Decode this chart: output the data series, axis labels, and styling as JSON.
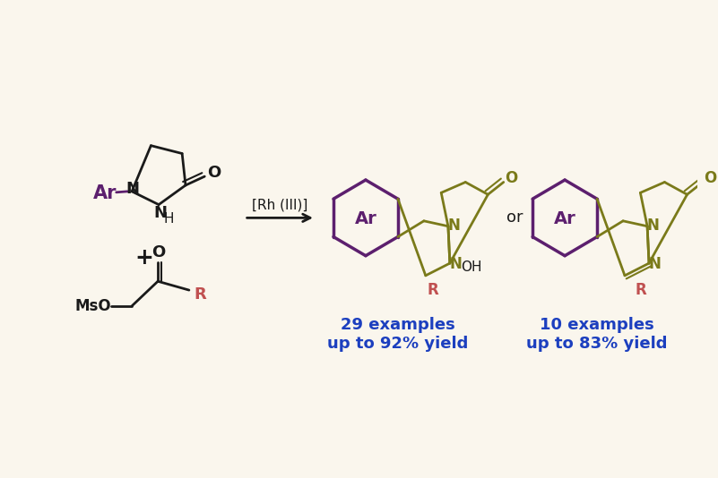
{
  "bg_color": "#FAF6ED",
  "dark_color": "#1a1a1a",
  "purple_color": "#5C1F6E",
  "olive_color": "#7A7A1A",
  "blue_color": "#1C3FBF",
  "red_color": "#C05050",
  "label1": "29 examples\nup to 92% yield",
  "label2": "10 examples\nup to 83% yield",
  "rh_label": "[Rh (III)]",
  "or_label": "or"
}
